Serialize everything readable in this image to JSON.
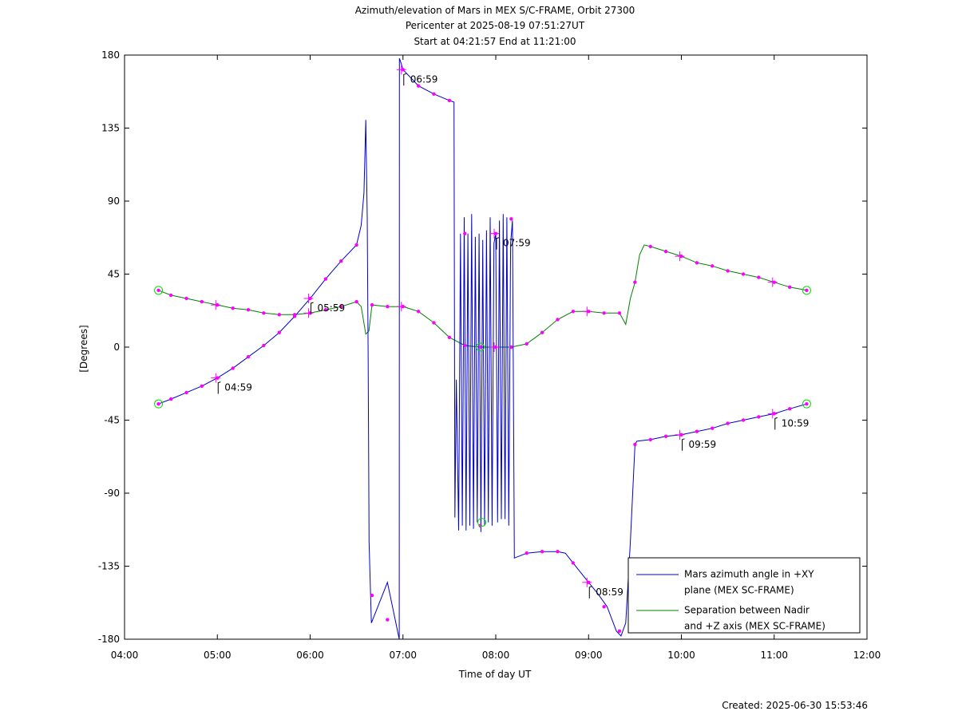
{
  "chart_data": {
    "type": "line",
    "title": "Azimuth/elevation of Mars in MEX S/C-FRAME,  Orbit 27300",
    "subtitle_lines": [
      "Pericenter at 2025-08-19 07:51:27UT",
      "Start at 04:21:57 End at 11:21:00"
    ],
    "xlabel": "Time of day UT",
    "ylabel": "[Degrees]",
    "x_unit": "hours of day",
    "xlim": [
      4,
      12
    ],
    "ylim": [
      -180,
      180
    ],
    "xticks": [
      4,
      5,
      6,
      7,
      8,
      9,
      10,
      11,
      12
    ],
    "xtick_labels": [
      "04:00",
      "05:00",
      "06:00",
      "07:00",
      "08:00",
      "09:00",
      "10:00",
      "11:00",
      "12:00"
    ],
    "yticks": [
      180,
      135,
      90,
      45,
      0,
      -45,
      -90,
      -135,
      -180
    ],
    "ytick_labels": [
      "180",
      "135",
      "90",
      "45",
      "0",
      "-45",
      "-90",
      "-135",
      "-180"
    ],
    "grid": false,
    "legend_placement": "bottom-right",
    "footer": "Created: 2025-06-30 15:53:46",
    "colors": {
      "azimuth": "#0000cc",
      "separation": "#008000",
      "markers": "#ff00ff",
      "start_end": "#00dd00"
    },
    "series": [
      {
        "name": "Mars azimuth angle in +XY plane (MEX SC-FRAME)",
        "legend_lines": [
          "Mars azimuth angle in +XY",
          "plane (MEX SC-FRAME)"
        ],
        "color": "#0000cc",
        "x": [
          4.366,
          4.5,
          4.667,
          4.833,
          5.0,
          5.167,
          5.333,
          5.5,
          5.667,
          5.833,
          6.0,
          6.167,
          6.333,
          6.5,
          6.55,
          6.58,
          6.6,
          6.615,
          6.625,
          6.635,
          6.66,
          6.833,
          6.96,
          6.962,
          6.98,
          7.0,
          7.167,
          7.333,
          7.5,
          7.55,
          7.56,
          7.575,
          7.6,
          7.62,
          7.64,
          7.66,
          7.68,
          7.7,
          7.72,
          7.74,
          7.76,
          7.78,
          7.8,
          7.82,
          7.84,
          7.86,
          7.88,
          7.9,
          7.92,
          7.94,
          7.96,
          7.98,
          8.0,
          8.02,
          8.04,
          8.06,
          8.08,
          8.1,
          8.12,
          8.14,
          8.16,
          8.18,
          8.2,
          8.333,
          8.5,
          8.667,
          8.75,
          8.833,
          9.0,
          9.1,
          9.2,
          9.3,
          9.35,
          9.4,
          9.45,
          9.5,
          9.52,
          9.667,
          9.833,
          10.0,
          10.167,
          10.333,
          10.5,
          10.667,
          10.833,
          11.0,
          11.167,
          11.35
        ],
        "y": [
          -35,
          -32,
          -28,
          -24,
          -19,
          -13,
          -6,
          1,
          9,
          19,
          30,
          42,
          53,
          63,
          75,
          95,
          140,
          80,
          -10,
          -120,
          -170,
          -145,
          -180,
          178,
          175,
          171,
          161,
          156,
          152,
          151,
          -105,
          -20,
          -113,
          70,
          -110,
          80,
          -113,
          70,
          -110,
          82,
          -112,
          68,
          -108,
          70,
          -114,
          66,
          -110,
          72,
          -108,
          80,
          -110,
          64,
          70,
          -108,
          78,
          -106,
          82,
          -106,
          80,
          -110,
          64,
          78,
          -130,
          -127,
          -126,
          -126,
          -127,
          -133,
          -145,
          -152,
          -160,
          -175,
          -178,
          -170,
          -120,
          -60,
          -58,
          -57,
          -55,
          -54,
          -52,
          -50,
          -47,
          -45,
          -43,
          -41,
          -38,
          -35
        ],
        "markers_x": [
          4.366,
          4.5,
          4.667,
          4.833,
          5.0,
          5.167,
          5.333,
          5.5,
          5.667,
          5.833,
          6.0,
          6.167,
          6.333,
          6.5,
          6.667,
          6.833,
          7.0,
          7.167,
          7.333,
          7.5,
          7.667,
          7.833,
          8.0,
          8.167,
          8.333,
          8.5,
          8.667,
          8.833,
          9.0,
          9.167,
          9.333,
          9.5,
          9.667,
          9.833,
          10.0,
          10.167,
          10.333,
          10.5,
          10.667,
          10.833,
          11.0,
          11.167,
          11.35
        ],
        "markers_y": [
          -35,
          -32,
          -28,
          -24,
          -19,
          -13,
          -6,
          1,
          9,
          19,
          30,
          42,
          53,
          63,
          -153,
          -168,
          171,
          161,
          156,
          152,
          70,
          -110,
          70,
          79,
          -127,
          -126,
          -126,
          -133,
          -145,
          -160,
          -175,
          -60,
          -57,
          -55,
          -54,
          -52,
          -50,
          -47,
          -45,
          -43,
          -41,
          -38,
          -35
        ]
      },
      {
        "name": "Separation between Nadir and +Z axis (MEX SC-FRAME)",
        "legend_lines": [
          "Separation between Nadir",
          "and +Z axis (MEX SC-FRAME)"
        ],
        "color": "#008000",
        "x": [
          4.366,
          4.5,
          4.667,
          4.833,
          5.0,
          5.167,
          5.333,
          5.5,
          5.667,
          5.833,
          6.0,
          6.167,
          6.333,
          6.5,
          6.55,
          6.6,
          6.633,
          6.667,
          6.833,
          7.0,
          7.167,
          7.333,
          7.5,
          7.667,
          7.833,
          8.0,
          8.167,
          8.333,
          8.5,
          8.667,
          8.833,
          9.0,
          9.167,
          9.333,
          9.4,
          9.45,
          9.5,
          9.55,
          9.6,
          9.667,
          9.833,
          10.0,
          10.167,
          10.333,
          10.5,
          10.667,
          10.833,
          11.0,
          11.167,
          11.35
        ],
        "y": [
          35,
          32,
          30,
          28,
          26,
          24,
          23,
          21,
          20,
          20,
          21,
          23,
          25,
          28,
          25,
          8,
          10,
          26,
          25,
          25,
          22,
          15,
          6,
          1,
          0,
          0,
          0,
          2,
          9,
          17,
          22,
          22,
          21,
          21,
          14,
          30,
          40,
          57,
          63,
          62,
          59,
          56,
          52,
          50,
          47,
          45,
          43,
          40,
          37,
          35
        ],
        "markers_x": [
          4.366,
          4.5,
          4.667,
          4.833,
          5.0,
          5.167,
          5.333,
          5.5,
          5.667,
          5.833,
          6.0,
          6.167,
          6.333,
          6.5,
          6.667,
          6.833,
          7.0,
          7.167,
          7.333,
          7.5,
          7.667,
          7.833,
          8.0,
          8.167,
          8.333,
          8.5,
          8.667,
          8.833,
          9.0,
          9.167,
          9.333,
          9.5,
          9.667,
          9.833,
          10.0,
          10.167,
          10.333,
          10.5,
          10.667,
          10.833,
          11.0,
          11.167,
          11.35
        ],
        "markers_y": [
          35,
          32,
          30,
          28,
          26,
          24,
          23,
          21,
          20,
          20,
          21,
          23,
          25,
          28,
          26,
          25,
          25,
          22,
          15,
          6,
          1,
          0,
          0,
          0,
          2,
          9,
          17,
          22,
          22,
          21,
          21,
          40,
          62,
          59,
          56,
          52,
          50,
          47,
          45,
          43,
          40,
          37,
          35
        ]
      }
    ],
    "hour_ticks": [
      {
        "x": 4.983,
        "y": -19,
        "label": "04:59"
      },
      {
        "x": 5.983,
        "y": 30,
        "label": "05:59"
      },
      {
        "x": 6.983,
        "y": 171,
        "label": "06:59"
      },
      {
        "x": 7.983,
        "y": 70,
        "label": "07:59"
      },
      {
        "x": 8.983,
        "y": -145,
        "label": "08:59"
      },
      {
        "x": 9.983,
        "y": -54,
        "label": "09:59"
      },
      {
        "x": 10.983,
        "y": -41,
        "label": "10:59"
      }
    ],
    "separation_hour_ticks": [
      {
        "x": 4.983,
        "y": 26
      },
      {
        "x": 5.983,
        "y": 21
      },
      {
        "x": 6.983,
        "y": 25
      },
      {
        "x": 7.983,
        "y": 0
      },
      {
        "x": 8.983,
        "y": 22
      },
      {
        "x": 9.983,
        "y": 56
      },
      {
        "x": 10.983,
        "y": 40
      }
    ],
    "start_end_circles": [
      {
        "x": 4.366,
        "y": -35
      },
      {
        "x": 4.366,
        "y": 35
      },
      {
        "x": 11.35,
        "y": -35
      },
      {
        "x": 11.35,
        "y": 35
      },
      {
        "x": 7.833,
        "y": 0
      },
      {
        "x": 7.85,
        "y": -108
      }
    ]
  }
}
